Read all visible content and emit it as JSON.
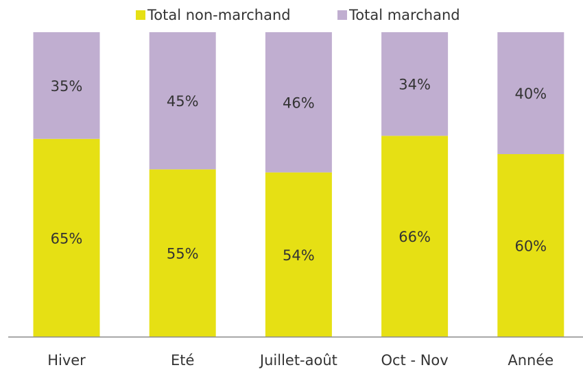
{
  "chart_data": {
    "type": "stacked_bar",
    "categories": [
      "Hiver",
      "Eté",
      "Juillet-août",
      "Oct - Nov",
      "Année"
    ],
    "series": [
      {
        "name": "Total non-marchand",
        "color": "#e6e014",
        "values": [
          65,
          55,
          54,
          66,
          60
        ],
        "value_labels": [
          "65%",
          "55%",
          "54%",
          "66%",
          "60%"
        ]
      },
      {
        "name": "Total marchand",
        "color": "#c0aed0",
        "values": [
          35,
          45,
          46,
          34,
          40
        ],
        "value_labels": [
          "35%",
          "45%",
          "46%",
          "34%",
          "40%"
        ]
      }
    ],
    "ylim": [
      0,
      100
    ],
    "legend": "top"
  }
}
